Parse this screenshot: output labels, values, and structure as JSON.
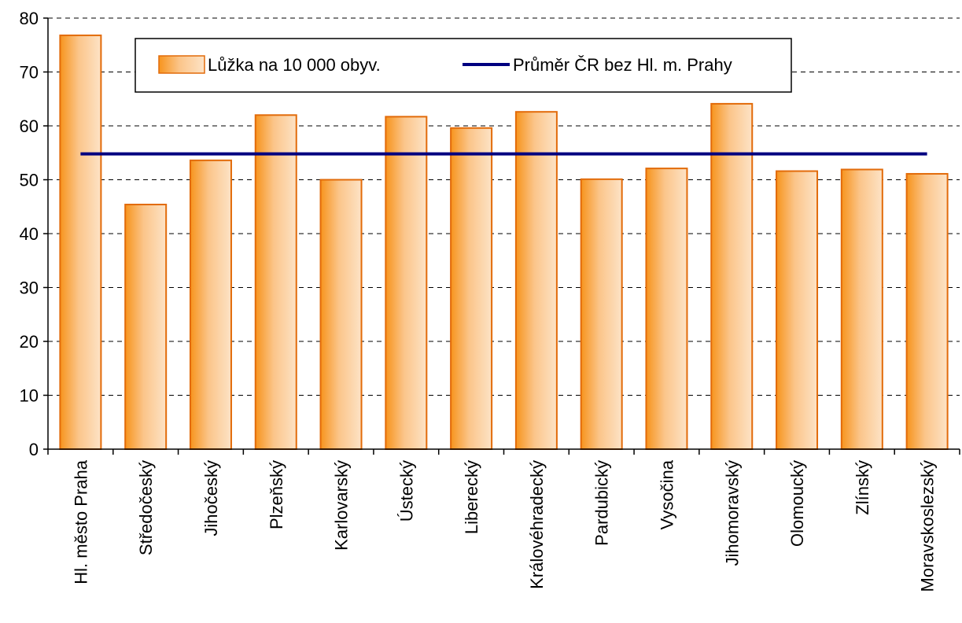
{
  "chart_data": {
    "type": "bar",
    "categories": [
      "Hl. město Praha",
      "Středočeský",
      "Jihočeský",
      "Plzeňský",
      "Karlovarský",
      "Ústecký",
      "Liberecký",
      "Královéhradecký",
      "Pardubický",
      "Vysočina",
      "Jihomoravský",
      "Olomoucký",
      "Zlínský",
      "Moravskoslezský"
    ],
    "series": [
      {
        "name": "Lůžka na 10 000 obyv.",
        "values": [
          76.8,
          45.4,
          53.6,
          62.0,
          50.0,
          61.7,
          59.6,
          62.6,
          50.1,
          52.1,
          64.1,
          51.6,
          51.9,
          51.1
        ],
        "color": "#f28c28"
      }
    ],
    "reference_line": {
      "name": "Průměr ČR bez Hl. m. Prahy",
      "value": 54.8,
      "color": "#000080"
    },
    "ylim": [
      0,
      80
    ],
    "yticks": [
      "0",
      "10",
      "20",
      "30",
      "40",
      "50",
      "60",
      "70",
      "80"
    ],
    "title": "",
    "xlabel": "",
    "ylabel": "",
    "grid": "dashed horizontal",
    "legend_position": "top"
  }
}
